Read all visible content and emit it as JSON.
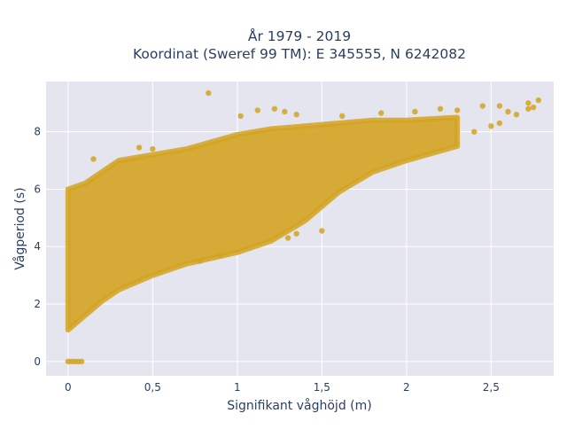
{
  "chart_data": {
    "type": "scatter",
    "title_lines": [
      "År 1979 - 2019",
      "Koordinat (Sweref 99 TM): E 345555, N 6242082"
    ],
    "xlabel": "Signifikant våghöjd (m)",
    "ylabel": "Vågperiod (s)",
    "xlim": [
      -0.13,
      2.87
    ],
    "ylim": [
      -0.5,
      9.75
    ],
    "x_ticks": [
      0,
      0.5,
      1,
      1.5,
      2,
      2.5
    ],
    "x_tick_labels": [
      "0",
      "0,5",
      "1",
      "1,5",
      "2",
      "2,5"
    ],
    "y_ticks": [
      0,
      2,
      4,
      6,
      8
    ],
    "y_tick_labels": [
      "0",
      "2",
      "4",
      "6",
      "8"
    ],
    "grid": true,
    "colors": {
      "points": "#d4a321",
      "background": "#e5e5f0",
      "grid": "#ffffff"
    },
    "series": [
      {
        "name": "",
        "band": {
          "lower": [
            [
              0.0,
              1.1
            ],
            [
              0.1,
              1.6
            ],
            [
              0.2,
              2.1
            ],
            [
              0.3,
              2.5
            ],
            [
              0.5,
              3.0
            ],
            [
              0.7,
              3.4
            ],
            [
              1.0,
              3.8
            ],
            [
              1.2,
              4.2
            ],
            [
              1.4,
              4.9
            ],
            [
              1.6,
              5.9
            ],
            [
              1.8,
              6.6
            ],
            [
              2.0,
              7.0
            ],
            [
              2.3,
              7.5
            ]
          ],
          "upper": [
            [
              0.0,
              6.0
            ],
            [
              0.1,
              6.2
            ],
            [
              0.2,
              6.6
            ],
            [
              0.3,
              7.0
            ],
            [
              0.5,
              7.2
            ],
            [
              0.7,
              7.4
            ],
            [
              1.0,
              7.9
            ],
            [
              1.2,
              8.1
            ],
            [
              1.4,
              8.2
            ],
            [
              1.6,
              8.3
            ],
            [
              1.8,
              8.4
            ],
            [
              2.0,
              8.4
            ],
            [
              2.3,
              8.5
            ]
          ]
        },
        "zero_points": [
          [
            0.0,
            0.0
          ],
          [
            0.02,
            0.0
          ],
          [
            0.04,
            0.0
          ],
          [
            0.06,
            0.0
          ],
          [
            0.08,
            0.0
          ]
        ],
        "outliers": [
          [
            0.83,
            9.35
          ],
          [
            1.02,
            8.55
          ],
          [
            1.12,
            8.75
          ],
          [
            1.22,
            8.8
          ],
          [
            1.28,
            8.7
          ],
          [
            1.35,
            8.6
          ],
          [
            1.62,
            8.55
          ],
          [
            1.85,
            8.65
          ],
          [
            2.05,
            8.7
          ],
          [
            2.2,
            8.8
          ],
          [
            2.3,
            8.75
          ],
          [
            2.45,
            8.9
          ],
          [
            2.55,
            8.9
          ],
          [
            2.6,
            8.7
          ],
          [
            2.65,
            8.6
          ],
          [
            2.72,
            9.0
          ],
          [
            2.75,
            8.85
          ],
          [
            2.78,
            9.1
          ],
          [
            2.72,
            8.8
          ],
          [
            2.5,
            8.2
          ],
          [
            2.4,
            8.0
          ],
          [
            2.55,
            8.3
          ],
          [
            0.5,
            7.4
          ],
          [
            0.42,
            7.45
          ],
          [
            0.15,
            7.05
          ],
          [
            1.5,
            4.55
          ],
          [
            1.3,
            4.3
          ],
          [
            1.35,
            4.45
          ],
          [
            0.9,
            3.7
          ],
          [
            0.78,
            3.5
          ]
        ]
      }
    ]
  }
}
